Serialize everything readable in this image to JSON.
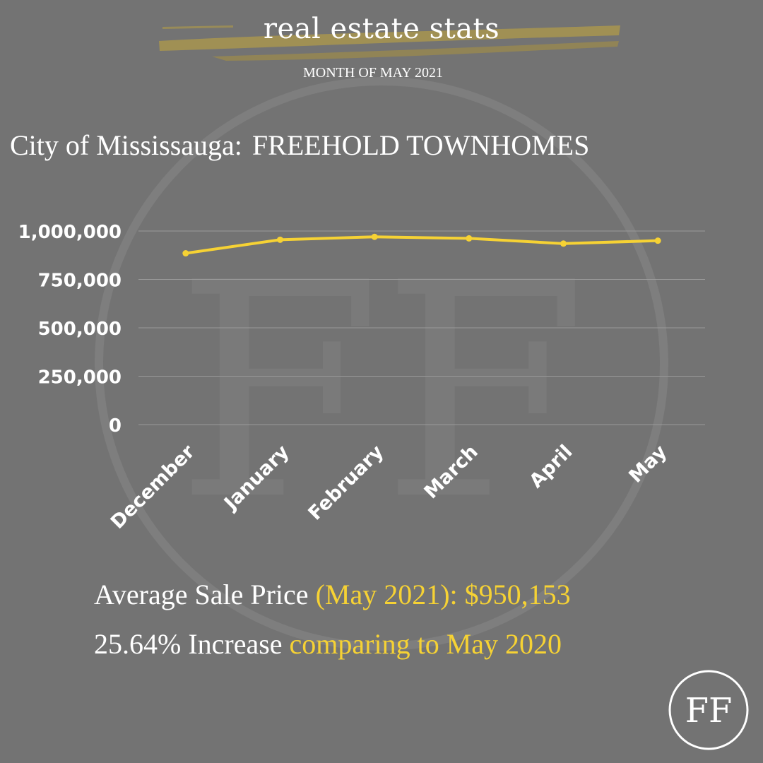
{
  "header": {
    "title": "real estate stats",
    "subtitle": "MONTH OF MAY 2021"
  },
  "heading": {
    "city": "City of Mississauga:",
    "category": "FREEHOLD TOWNHOMES"
  },
  "stats": {
    "avg_label": "Average Sale Price",
    "avg_period": "(May 2021):",
    "avg_value": "$950,153",
    "increase_value": "25.64% Increase",
    "increase_label": "comparing to May 2020"
  },
  "colors": {
    "background": "#737373",
    "accent": "#f6d234",
    "text": "#ffffff",
    "grid": "#999999"
  },
  "logo": {
    "icon": "ff-monogram-logo",
    "text": "FF"
  },
  "chart_data": {
    "type": "line",
    "categories": [
      "December",
      "January",
      "February",
      "March",
      "April",
      "May"
    ],
    "series": [
      {
        "values": [
          885000,
          955000,
          970000,
          962000,
          935000,
          950153
        ]
      }
    ],
    "yticks": [
      "0",
      "250,000",
      "500,000",
      "750,000",
      "1,000,000"
    ],
    "ylim": [
      0,
      1000000
    ],
    "grid": true,
    "legend": "none",
    "title": "",
    "xlabel": "",
    "ylabel": ""
  }
}
